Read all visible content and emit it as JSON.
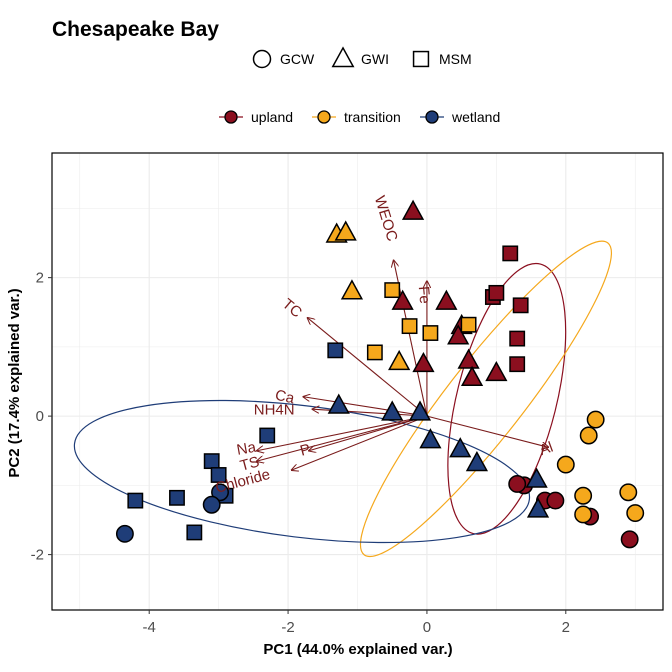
{
  "chart_data": {
    "type": "scatter",
    "title": "Chesapeake Bay",
    "xlabel": "PC1 (44.0% explained var.)",
    "ylabel": "PC2 (17.4% explained var.)",
    "xlim": [
      -5.4,
      3.4
    ],
    "ylim": [
      -2.8,
      3.8
    ],
    "xticks": [
      -4,
      -2,
      0,
      2
    ],
    "yticks": [
      -2,
      0,
      2
    ],
    "grid": true,
    "shape_legend": {
      "position": "top",
      "items": [
        {
          "label": "GCW",
          "shape": "circle"
        },
        {
          "label": "GWI",
          "shape": "triangle"
        },
        {
          "label": "MSM",
          "shape": "square"
        }
      ]
    },
    "color_legend": {
      "position": "top",
      "items": [
        {
          "label": "upland",
          "color": "#8b0f1f"
        },
        {
          "label": "transition",
          "color": "#f5a81c"
        },
        {
          "label": "wetland",
          "color": "#1f3d78"
        }
      ]
    },
    "ellipses": [
      {
        "group": "upland",
        "color": "#8b0f1f",
        "cx": 1.15,
        "cy": 0.25,
        "rx": 2.0,
        "ry": 0.72,
        "angle_deg": -76
      },
      {
        "group": "transition",
        "color": "#f5a81c",
        "cx": 0.85,
        "cy": 0.25,
        "rx": 2.85,
        "ry": 0.55,
        "angle_deg": -52
      },
      {
        "group": "wetland",
        "color": "#1f3d78",
        "cx": -1.8,
        "cy": -0.8,
        "rx": 3.3,
        "ry": 0.95,
        "angle_deg": 7
      }
    ],
    "loadings": {
      "origin": [
        0,
        0
      ],
      "color": "#7a1c1c",
      "arrows": [
        {
          "label": "WEOC",
          "x": -0.48,
          "y": 2.25,
          "lx": -0.6,
          "ly": 2.85,
          "rot": 73
        },
        {
          "label": "Fe",
          "x": 0.0,
          "y": 1.95,
          "lx": -0.05,
          "ly": 1.75,
          "rot": 85
        },
        {
          "label": "TC",
          "x": -1.72,
          "y": 1.42,
          "lx": -1.95,
          "ly": 1.55,
          "rot": 40
        },
        {
          "label": "Ca",
          "x": -1.78,
          "y": 0.28,
          "lx": -2.05,
          "ly": 0.27,
          "rot": 12
        },
        {
          "label": "NH4N",
          "x": -1.65,
          "y": 0.1,
          "lx": -2.2,
          "ly": 0.08,
          "rot": 0
        },
        {
          "label": "Na",
          "x": -2.45,
          "y": -0.5,
          "lx": -2.6,
          "ly": -0.48,
          "rot": -10
        },
        {
          "label": "TS",
          "x": -2.45,
          "y": -0.65,
          "lx": -2.55,
          "ly": -0.7,
          "rot": -15
        },
        {
          "label": "P",
          "x": -1.7,
          "y": -0.5,
          "lx": -1.75,
          "ly": -0.5,
          "rot": -15
        },
        {
          "label": "Chloride",
          "x": -1.95,
          "y": -0.78,
          "lx": -2.65,
          "ly": -0.95,
          "rot": -15
        },
        {
          "label": "Al",
          "x": 1.75,
          "y": -0.45,
          "lx": 1.72,
          "ly": -0.48,
          "rot": -20
        }
      ]
    },
    "series": [
      {
        "name": "upland",
        "color": "#8b0f1f",
        "points": [
          {
            "x": -0.2,
            "y": 2.95,
            "shape": "triangle"
          },
          {
            "x": 1.2,
            "y": 2.35,
            "shape": "square"
          },
          {
            "x": 0.95,
            "y": 1.72,
            "shape": "square"
          },
          {
            "x": 1.0,
            "y": 1.78,
            "shape": "square"
          },
          {
            "x": 1.35,
            "y": 1.6,
            "shape": "square"
          },
          {
            "x": -0.35,
            "y": 1.65,
            "shape": "triangle"
          },
          {
            "x": 0.28,
            "y": 1.65,
            "shape": "triangle"
          },
          {
            "x": 0.5,
            "y": 1.3,
            "shape": "triangle"
          },
          {
            "x": 0.45,
            "y": 1.15,
            "shape": "triangle"
          },
          {
            "x": 1.3,
            "y": 1.12,
            "shape": "square"
          },
          {
            "x": 0.6,
            "y": 0.8,
            "shape": "triangle"
          },
          {
            "x": -0.05,
            "y": 0.75,
            "shape": "triangle"
          },
          {
            "x": 1.3,
            "y": 0.75,
            "shape": "square"
          },
          {
            "x": 0.65,
            "y": 0.55,
            "shape": "triangle"
          },
          {
            "x": 1.0,
            "y": 0.62,
            "shape": "triangle"
          },
          {
            "x": 1.4,
            "y": -1.0,
            "shape": "circle"
          },
          {
            "x": 1.3,
            "y": -0.98,
            "shape": "circle"
          },
          {
            "x": 1.7,
            "y": -1.22,
            "shape": "circle"
          },
          {
            "x": 1.85,
            "y": -1.22,
            "shape": "circle"
          },
          {
            "x": 2.35,
            "y": -1.45,
            "shape": "circle"
          },
          {
            "x": 2.92,
            "y": -1.78,
            "shape": "circle"
          }
        ]
      },
      {
        "name": "transition",
        "color": "#f5a81c",
        "points": [
          {
            "x": -1.3,
            "y": 2.62,
            "shape": "triangle"
          },
          {
            "x": -1.17,
            "y": 2.65,
            "shape": "triangle"
          },
          {
            "x": -1.08,
            "y": 1.8,
            "shape": "triangle"
          },
          {
            "x": -0.5,
            "y": 1.82,
            "shape": "square"
          },
          {
            "x": -0.25,
            "y": 1.3,
            "shape": "square"
          },
          {
            "x": 0.05,
            "y": 1.2,
            "shape": "square"
          },
          {
            "x": 0.6,
            "y": 1.32,
            "shape": "square"
          },
          {
            "x": -0.75,
            "y": 0.92,
            "shape": "square"
          },
          {
            "x": -0.4,
            "y": 0.78,
            "shape": "triangle"
          },
          {
            "x": 2.43,
            "y": -0.05,
            "shape": "circle"
          },
          {
            "x": 2.33,
            "y": -0.28,
            "shape": "circle"
          },
          {
            "x": 2.0,
            "y": -0.7,
            "shape": "circle"
          },
          {
            "x": 2.25,
            "y": -1.15,
            "shape": "circle"
          },
          {
            "x": 2.25,
            "y": -1.42,
            "shape": "circle"
          },
          {
            "x": 2.9,
            "y": -1.1,
            "shape": "circle"
          },
          {
            "x": 3.0,
            "y": -1.4,
            "shape": "circle"
          }
        ]
      },
      {
        "name": "wetland",
        "color": "#1f3d78",
        "points": [
          {
            "x": -1.32,
            "y": 0.95,
            "shape": "square"
          },
          {
            "x": -1.27,
            "y": 0.15,
            "shape": "triangle"
          },
          {
            "x": -0.5,
            "y": 0.05,
            "shape": "triangle"
          },
          {
            "x": -0.1,
            "y": 0.05,
            "shape": "triangle"
          },
          {
            "x": 0.05,
            "y": -0.35,
            "shape": "triangle"
          },
          {
            "x": 0.48,
            "y": -0.48,
            "shape": "triangle"
          },
          {
            "x": 0.72,
            "y": -0.68,
            "shape": "triangle"
          },
          {
            "x": 1.58,
            "y": -0.92,
            "shape": "triangle"
          },
          {
            "x": 1.6,
            "y": -1.35,
            "shape": "triangle"
          },
          {
            "x": -2.3,
            "y": -0.28,
            "shape": "square"
          },
          {
            "x": -3.1,
            "y": -0.65,
            "shape": "square"
          },
          {
            "x": -3.0,
            "y": -0.85,
            "shape": "square"
          },
          {
            "x": -2.9,
            "y": -1.15,
            "shape": "square"
          },
          {
            "x": -2.98,
            "y": -1.1,
            "shape": "circle"
          },
          {
            "x": -3.1,
            "y": -1.28,
            "shape": "circle"
          },
          {
            "x": -3.6,
            "y": -1.18,
            "shape": "square"
          },
          {
            "x": -4.2,
            "y": -1.22,
            "shape": "square"
          },
          {
            "x": -3.35,
            "y": -1.68,
            "shape": "square"
          },
          {
            "x": -4.35,
            "y": -1.7,
            "shape": "circle"
          }
        ]
      }
    ]
  }
}
